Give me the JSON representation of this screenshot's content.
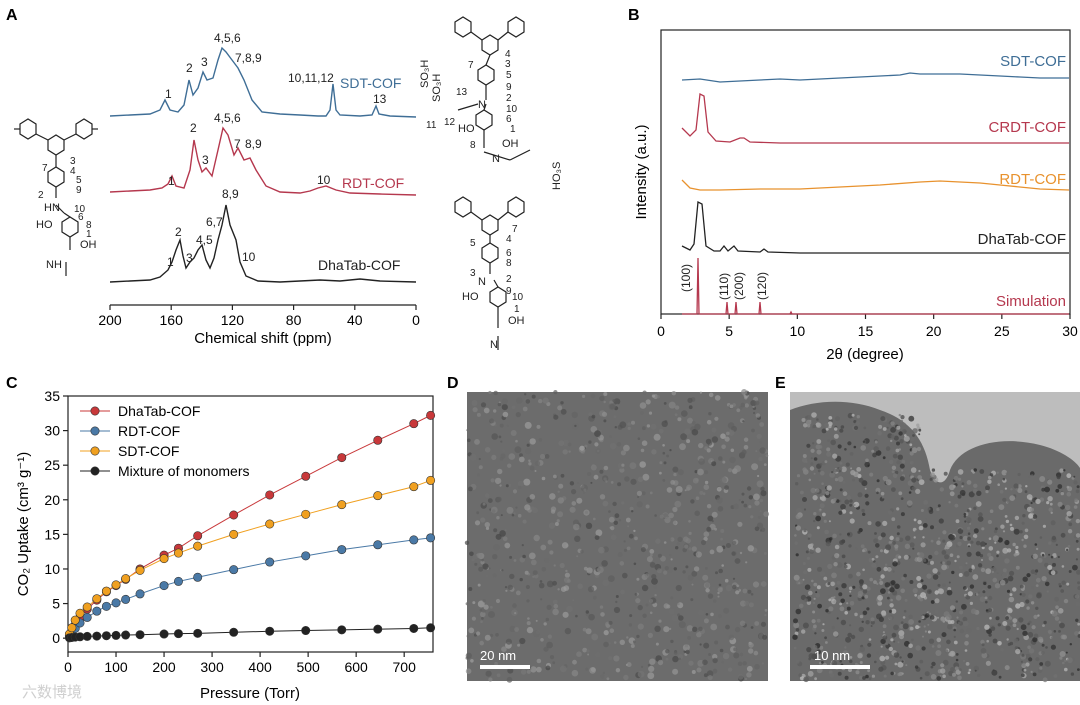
{
  "panels": {
    "A": {
      "letter": "A",
      "xlabel": "Chemical shift (ppm)"
    },
    "B": {
      "letter": "B",
      "xlabel": "2θ (degree)",
      "ylabel": "Intensity (a.u.)"
    },
    "C": {
      "letter": "C",
      "xlabel": "Pressure (Torr)",
      "ylabel": "CO₂ Uptake (cm³ g⁻¹)"
    },
    "D": {
      "letter": "D",
      "scale_bar": "20 nm"
    },
    "E": {
      "letter": "E",
      "scale_bar": "10 nm"
    }
  },
  "watermark": "六数博境",
  "chart_data": [
    {
      "panel": "A",
      "type": "line",
      "title": "",
      "xlabel": "Chemical shift (ppm)",
      "ylabel": "",
      "xlim": [
        200,
        0
      ],
      "xticks": [
        "200",
        "160",
        "120",
        "80",
        "40",
        "0"
      ],
      "series": [
        {
          "name": "SDT-COF",
          "color": "#3f6e96",
          "peaks_ppm": [
            160,
            145,
            137,
            124,
            112,
            55,
            27
          ],
          "peak_labels": [
            "1",
            "2",
            "3",
            "4,5,6",
            "7,8,9",
            "10,11,12",
            "13"
          ]
        },
        {
          "name": "RDT-COF",
          "color": "#b5384e",
          "peaks_ppm": [
            160,
            145,
            138,
            122,
            112,
            60
          ],
          "peak_labels": [
            "1",
            "2",
            "3",
            "4,5,6",
            "7",
            "8,9",
            "10"
          ]
        },
        {
          "name": "DhaTab-COF",
          "color": "#222222",
          "peaks_ppm": [
            160,
            150,
            144,
            139,
            127,
            122,
            110
          ],
          "peak_labels": [
            "1",
            "2",
            "3",
            "4,5",
            "6,7",
            "8,9",
            "10"
          ]
        }
      ]
    },
    {
      "panel": "B",
      "type": "line",
      "title": "",
      "xlabel": "2θ (degree)",
      "ylabel": "Intensity (a.u.)",
      "xlim": [
        0,
        30
      ],
      "xticks": [
        "0",
        "5",
        "10",
        "15",
        "20",
        "25",
        "30"
      ],
      "series": [
        {
          "name": "SDT-COF",
          "color": "#3f6e96",
          "peaks_2theta": []
        },
        {
          "name": "CRDT-COF",
          "color": "#b5384e",
          "peaks_2theta": [
            2.8,
            5.8
          ]
        },
        {
          "name": "RDT-COF",
          "color": "#e8922e",
          "peaks_2theta": []
        },
        {
          "name": "DhaTab-COF",
          "color": "#222222",
          "peaks_2theta": [
            2.7,
            4.8,
            5.5,
            7.2
          ]
        },
        {
          "name": "Simulation",
          "color": "#b5384e",
          "peaks_2theta": [
            2.7,
            4.8,
            5.5,
            7.2
          ],
          "peak_labels": [
            "(100)",
            "(110)",
            "(200)",
            "(120)"
          ]
        }
      ]
    },
    {
      "panel": "C",
      "type": "scatter",
      "title": "",
      "xlabel": "Pressure (Torr)",
      "ylabel": "CO₂ Uptake (cm³ g⁻¹)",
      "xlim": [
        0,
        760
      ],
      "ylim": [
        -2,
        35
      ],
      "xticks": [
        "0",
        "100",
        "200",
        "300",
        "400",
        "500",
        "600",
        "700"
      ],
      "yticks": [
        "0",
        "5",
        "10",
        "15",
        "20",
        "25",
        "30",
        "35"
      ],
      "x": [
        3,
        8,
        15,
        25,
        40,
        60,
        80,
        100,
        120,
        150,
        200,
        230,
        270,
        345,
        420,
        495,
        570,
        645,
        720,
        755
      ],
      "legend_position": "top-left",
      "series": [
        {
          "name": "DhaTab-COF",
          "color": "#c8383a",
          "values": [
            0.4,
            1.0,
            1.9,
            3.0,
            4.2,
            5.5,
            6.7,
            7.6,
            8.5,
            10.0,
            12.0,
            13.0,
            14.8,
            17.8,
            20.7,
            23.4,
            26.1,
            28.6,
            31.0,
            32.2
          ]
        },
        {
          "name": "RDT-COF",
          "color": "#4a79a6",
          "values": [
            0.3,
            0.8,
            1.4,
            2.2,
            3.0,
            3.9,
            4.6,
            5.1,
            5.6,
            6.4,
            7.6,
            8.2,
            8.8,
            9.9,
            11.0,
            11.9,
            12.8,
            13.5,
            14.2,
            14.5
          ]
        },
        {
          "name": "SDT-COF",
          "color": "#f0a020",
          "values": [
            0.6,
            1.5,
            2.6,
            3.6,
            4.5,
            5.7,
            6.8,
            7.7,
            8.6,
            9.8,
            11.5,
            12.3,
            13.3,
            15.0,
            16.5,
            17.9,
            19.3,
            20.6,
            21.9,
            22.8
          ]
        },
        {
          "name": "Mixture of monomers",
          "color": "#222222",
          "values": [
            0.05,
            0.1,
            0.15,
            0.2,
            0.25,
            0.3,
            0.35,
            0.4,
            0.45,
            0.5,
            0.6,
            0.65,
            0.7,
            0.85,
            1.0,
            1.1,
            1.2,
            1.3,
            1.4,
            1.5
          ]
        }
      ]
    }
  ]
}
